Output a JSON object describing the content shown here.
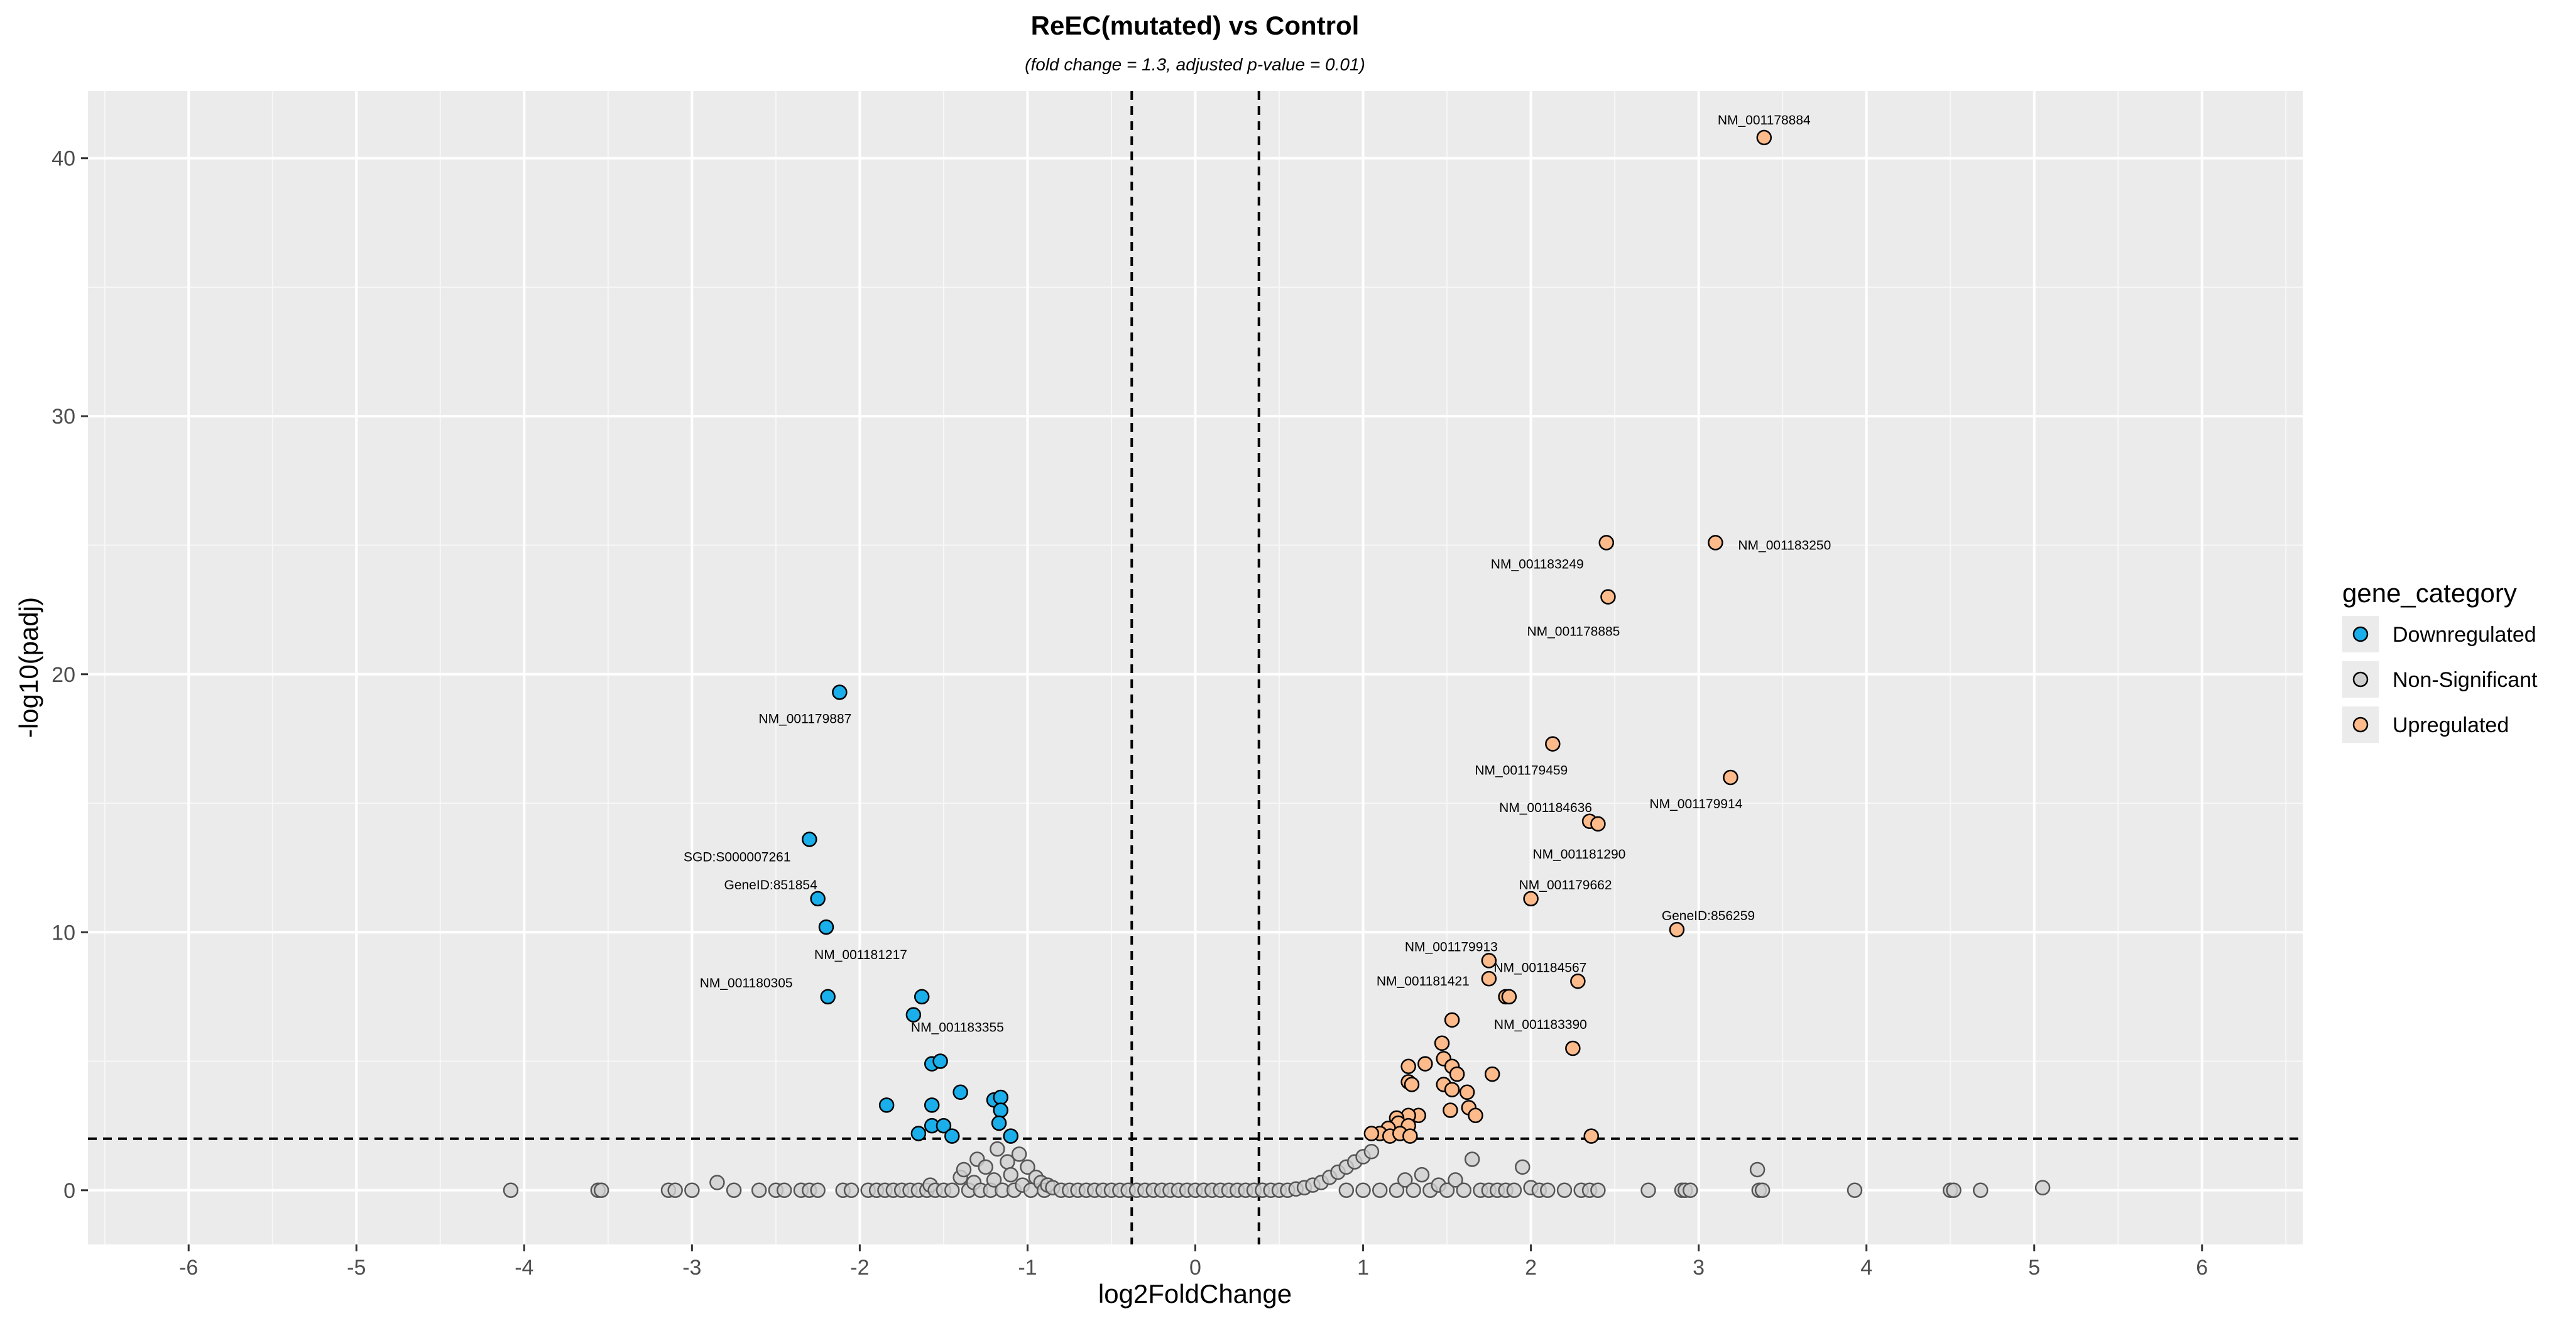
{
  "chart_data": {
    "type": "scatter",
    "title": "ReEC(mutated) vs Control",
    "subtitle": "(fold change = 1.3, adjusted p-value = 0.01)",
    "xlabel": "log2FoldChange",
    "ylabel": "-log10(padj)",
    "xlim": [
      -6.6,
      6.6
    ],
    "ylim": [
      -2.1,
      42.6
    ],
    "x_ticks": [
      -6,
      -5,
      -4,
      -3,
      -2,
      -1,
      0,
      1,
      2,
      3,
      4,
      5,
      6
    ],
    "y_ticks": [
      0,
      10,
      20,
      30,
      40
    ],
    "grid": true,
    "legend_position": "right",
    "thresholds": {
      "vertical_x": [
        -0.379,
        0.379
      ],
      "horizontal_y": 2
    },
    "legend": {
      "title": "gene_category",
      "entries": [
        {
          "name": "Downregulated",
          "color": "#1aafeb"
        },
        {
          "name": "Non-Significant",
          "color": "#cfcfcf"
        },
        {
          "name": "Upregulated",
          "color": "#fdba8a"
        }
      ]
    },
    "series": [
      {
        "name": "Downregulated",
        "color": "#1aafeb",
        "points": [
          [
            -2.12,
            19.3
          ],
          [
            -2.3,
            13.6
          ],
          [
            -2.25,
            11.3
          ],
          [
            -2.2,
            10.2
          ],
          [
            -2.19,
            7.5
          ],
          [
            -1.68,
            6.8
          ],
          [
            -1.63,
            7.5
          ],
          [
            -1.57,
            4.9
          ],
          [
            -1.52,
            5.0
          ],
          [
            -1.4,
            3.8
          ],
          [
            -1.84,
            3.3
          ],
          [
            -1.57,
            3.3
          ],
          [
            -1.57,
            2.5
          ],
          [
            -1.5,
            2.5
          ],
          [
            -1.65,
            2.2
          ],
          [
            -1.45,
            2.1
          ],
          [
            -1.2,
            3.5
          ],
          [
            -1.16,
            3.6
          ],
          [
            -1.16,
            3.1
          ],
          [
            -1.17,
            2.6
          ],
          [
            -1.1,
            2.1
          ]
        ]
      },
      {
        "name": "Non-Significant",
        "color": "#cfcfcf",
        "points": [
          [
            -4.08,
            0
          ],
          [
            -3.56,
            0
          ],
          [
            -3.54,
            0
          ],
          [
            -3.14,
            0
          ],
          [
            -3.1,
            0
          ],
          [
            -3.0,
            0
          ],
          [
            -2.85,
            0.3
          ],
          [
            -2.75,
            0
          ],
          [
            -2.6,
            0
          ],
          [
            -2.5,
            0
          ],
          [
            -2.45,
            0
          ],
          [
            -2.35,
            0
          ],
          [
            -2.3,
            0
          ],
          [
            -2.25,
            0
          ],
          [
            -2.1,
            0
          ],
          [
            -2.05,
            0
          ],
          [
            -1.95,
            0
          ],
          [
            -1.9,
            0
          ],
          [
            -1.85,
            0
          ],
          [
            -1.8,
            0
          ],
          [
            -1.75,
            0
          ],
          [
            -1.7,
            0
          ],
          [
            -1.65,
            0
          ],
          [
            -1.6,
            0
          ],
          [
            -1.58,
            0.2
          ],
          [
            -1.55,
            0
          ],
          [
            -1.5,
            0
          ],
          [
            -1.45,
            0
          ],
          [
            -1.4,
            0.5
          ],
          [
            -1.38,
            0.8
          ],
          [
            -1.35,
            0
          ],
          [
            -1.32,
            0.3
          ],
          [
            -1.3,
            1.2
          ],
          [
            -1.28,
            0
          ],
          [
            -1.25,
            0.9
          ],
          [
            -1.22,
            0
          ],
          [
            -1.2,
            0.4
          ],
          [
            -1.18,
            1.6
          ],
          [
            -1.15,
            0
          ],
          [
            -1.12,
            1.1
          ],
          [
            -1.1,
            0.6
          ],
          [
            -1.08,
            0
          ],
          [
            -1.05,
            1.4
          ],
          [
            -1.03,
            0.2
          ],
          [
            -1.0,
            0.9
          ],
          [
            -0.98,
            0
          ],
          [
            -0.95,
            0.5
          ],
          [
            -0.92,
            0.3
          ],
          [
            -0.9,
            0
          ],
          [
            -0.88,
            0.2
          ],
          [
            -0.85,
            0.1
          ],
          [
            -0.8,
            0
          ],
          [
            -0.75,
            0
          ],
          [
            -0.7,
            0
          ],
          [
            -0.65,
            0
          ],
          [
            -0.6,
            0
          ],
          [
            -0.55,
            0
          ],
          [
            -0.5,
            0
          ],
          [
            -0.45,
            0
          ],
          [
            -0.4,
            0
          ],
          [
            -0.35,
            0
          ],
          [
            -0.3,
            0
          ],
          [
            -0.25,
            0
          ],
          [
            -0.2,
            0
          ],
          [
            -0.15,
            0
          ],
          [
            -0.1,
            0
          ],
          [
            -0.05,
            0
          ],
          [
            0.0,
            0
          ],
          [
            0.05,
            0
          ],
          [
            0.1,
            0
          ],
          [
            0.15,
            0
          ],
          [
            0.2,
            0
          ],
          [
            0.25,
            0
          ],
          [
            0.3,
            0
          ],
          [
            0.35,
            0
          ],
          [
            0.4,
            0
          ],
          [
            0.45,
            0
          ],
          [
            0.5,
            0
          ],
          [
            0.55,
            0
          ],
          [
            0.6,
            0.05
          ],
          [
            0.65,
            0.1
          ],
          [
            0.7,
            0.2
          ],
          [
            0.75,
            0.3
          ],
          [
            0.8,
            0.5
          ],
          [
            0.85,
            0.7
          ],
          [
            0.9,
            0.9
          ],
          [
            0.95,
            1.1
          ],
          [
            1.0,
            1.3
          ],
          [
            1.05,
            1.5
          ],
          [
            0.9,
            0
          ],
          [
            1.0,
            0
          ],
          [
            1.1,
            0
          ],
          [
            1.2,
            0
          ],
          [
            1.25,
            0.4
          ],
          [
            1.3,
            0
          ],
          [
            1.35,
            0.6
          ],
          [
            1.4,
            0
          ],
          [
            1.45,
            0.2
          ],
          [
            1.5,
            0
          ],
          [
            1.55,
            0.4
          ],
          [
            1.6,
            0
          ],
          [
            1.65,
            1.2
          ],
          [
            1.7,
            0
          ],
          [
            1.75,
            0
          ],
          [
            1.8,
            0
          ],
          [
            1.85,
            0
          ],
          [
            1.9,
            0
          ],
          [
            1.95,
            0.9
          ],
          [
            2.0,
            0.1
          ],
          [
            2.05,
            0
          ],
          [
            2.1,
            0
          ],
          [
            2.2,
            0
          ],
          [
            2.3,
            0
          ],
          [
            2.35,
            0
          ],
          [
            2.4,
            0
          ],
          [
            2.7,
            0
          ],
          [
            2.9,
            0
          ],
          [
            2.92,
            0
          ],
          [
            2.95,
            0
          ],
          [
            3.35,
            0.8
          ],
          [
            3.36,
            0
          ],
          [
            3.38,
            0
          ],
          [
            3.93,
            0
          ],
          [
            4.5,
            0
          ],
          [
            4.52,
            0
          ],
          [
            4.68,
            0
          ],
          [
            5.05,
            0.1
          ]
        ]
      },
      {
        "name": "Upregulated",
        "color": "#fdba8a",
        "points": [
          [
            3.39,
            40.8
          ],
          [
            2.45,
            25.1
          ],
          [
            3.1,
            25.1
          ],
          [
            2.46,
            23.0
          ],
          [
            2.13,
            17.3
          ],
          [
            3.19,
            16.0
          ],
          [
            2.35,
            14.3
          ],
          [
            2.4,
            14.2
          ],
          [
            2.0,
            11.3
          ],
          [
            2.87,
            10.1
          ],
          [
            1.75,
            8.9
          ],
          [
            1.75,
            8.2
          ],
          [
            2.28,
            8.1
          ],
          [
            1.85,
            7.5
          ],
          [
            1.87,
            7.5
          ],
          [
            1.53,
            6.6
          ],
          [
            1.47,
            5.7
          ],
          [
            2.25,
            5.5
          ],
          [
            1.48,
            5.1
          ],
          [
            1.27,
            4.8
          ],
          [
            1.37,
            4.9
          ],
          [
            1.53,
            4.8
          ],
          [
            1.56,
            4.5
          ],
          [
            1.77,
            4.5
          ],
          [
            1.27,
            4.2
          ],
          [
            1.29,
            4.1
          ],
          [
            1.48,
            4.1
          ],
          [
            1.53,
            3.9
          ],
          [
            1.62,
            3.8
          ],
          [
            1.63,
            3.2
          ],
          [
            1.52,
            3.1
          ],
          [
            1.67,
            2.9
          ],
          [
            1.33,
            2.9
          ],
          [
            1.27,
            2.9
          ],
          [
            1.2,
            2.8
          ],
          [
            1.21,
            2.6
          ],
          [
            1.27,
            2.5
          ],
          [
            1.15,
            2.4
          ],
          [
            1.1,
            2.2
          ],
          [
            1.05,
            2.2
          ],
          [
            1.16,
            2.1
          ],
          [
            1.22,
            2.2
          ],
          [
            1.28,
            2.1
          ],
          [
            2.36,
            2.1
          ]
        ]
      }
    ],
    "annotations": [
      {
        "text": "NM_001178884",
        "x": 3.39,
        "y": 40.8
      },
      {
        "text": "NM_001183249",
        "x": 2.45,
        "y": 25.1
      },
      {
        "text": "NM_001183250",
        "x": 3.1,
        "y": 25.1
      },
      {
        "text": "NM_001178885",
        "x": 2.46,
        "y": 23.0
      },
      {
        "text": "NM_001179887",
        "x": -2.12,
        "y": 19.3
      },
      {
        "text": "NM_001179459",
        "x": 2.13,
        "y": 17.3
      },
      {
        "text": "NM_001179914",
        "x": 3.19,
        "y": 16.0
      },
      {
        "text": "NM_001184636",
        "x": 2.35,
        "y": 14.3
      },
      {
        "text": "NM_001181290",
        "x": 2.4,
        "y": 14.2
      },
      {
        "text": "SGD:S000007261",
        "x": -2.3,
        "y": 13.6
      },
      {
        "text": "GeneID:851854",
        "x": -2.25,
        "y": 11.3
      },
      {
        "text": "NM_001179662",
        "x": 2.0,
        "y": 11.3
      },
      {
        "text": "GeneID:856259",
        "x": 2.87,
        "y": 10.1
      },
      {
        "text": "NM_001181217",
        "x": -2.2,
        "y": 10.2
      },
      {
        "text": "NM_001179913",
        "x": 1.75,
        "y": 8.9
      },
      {
        "text": "NM_001184567",
        "x": 2.28,
        "y": 8.1
      },
      {
        "text": "NM_001181421",
        "x": 1.75,
        "y": 8.2
      },
      {
        "text": "NM_001180305",
        "x": -2.19,
        "y": 7.5
      },
      {
        "text": "NM_001183390",
        "x": 1.87,
        "y": 7.5
      },
      {
        "text": "NM_001183355",
        "x": -1.68,
        "y": 6.8
      }
    ]
  }
}
